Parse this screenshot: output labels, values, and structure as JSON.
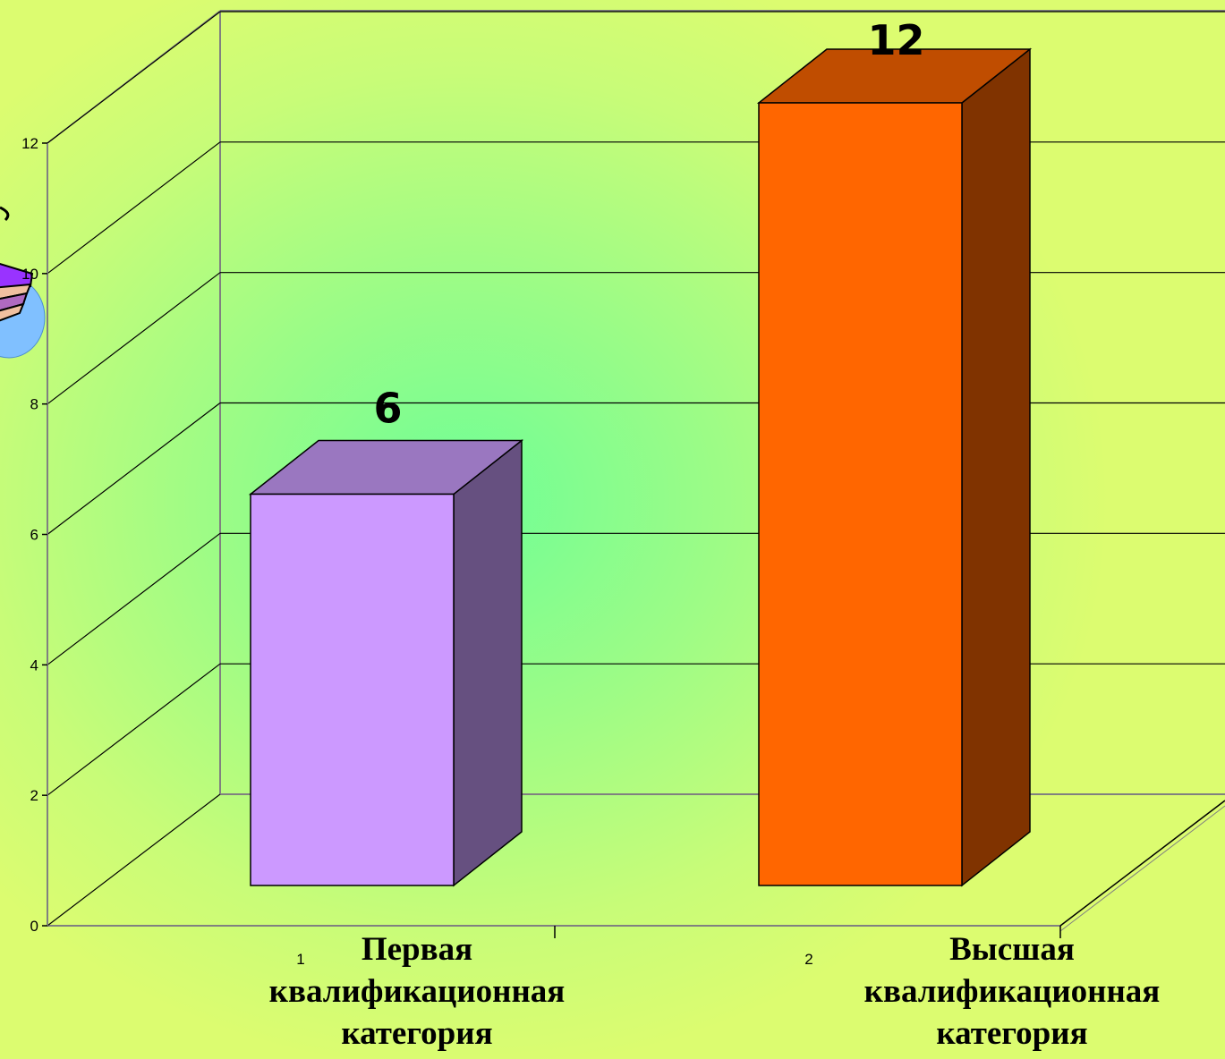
{
  "chart_data": {
    "type": "bar",
    "categories": [
      "1",
      "2"
    ],
    "category_names": [
      "Первая квалификационная категория",
      "Высшая квалификационная категория"
    ],
    "values": [
      6,
      12
    ],
    "ylim": [
      0,
      12
    ],
    "yticks": [
      0,
      2,
      4,
      6,
      8,
      10,
      12
    ],
    "grid": true,
    "colors": {
      "bar1_front": "#cc99ff",
      "bar1_side": "#665080",
      "bar1_top": "#9a77c0",
      "bar2_front": "#ff6600",
      "bar2_side": "#803300",
      "bar2_top": "#c04d00"
    }
  }
}
